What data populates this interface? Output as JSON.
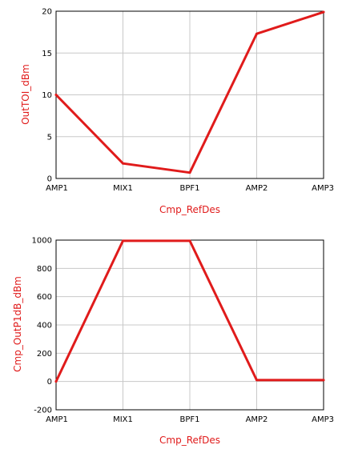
{
  "chart_data": [
    {
      "type": "line",
      "xlabel": "Cmp_RefDes",
      "ylabel": "OutTOI_dBm",
      "categories": [
        "AMP1",
        "MIX1",
        "BPF1",
        "AMP2",
        "AMP3"
      ],
      "values": [
        10,
        1.8,
        0.7,
        17.3,
        19.9
      ],
      "ylim": [
        0,
        20
      ],
      "yticks": [
        "0",
        "5",
        "10",
        "15",
        "20"
      ],
      "grid": true,
      "color": "#e01b1b"
    },
    {
      "type": "line",
      "xlabel": "Cmp_RefDes",
      "ylabel": "Cmp_OutP1dB_dBm",
      "categories": [
        "AMP1",
        "MIX1",
        "BPF1",
        "AMP2",
        "AMP3"
      ],
      "values": [
        0,
        995,
        995,
        10,
        10
      ],
      "ylim": [
        -200,
        1000
      ],
      "yticks": [
        "-200",
        "0",
        "200",
        "400",
        "600",
        "800",
        "1000"
      ],
      "grid": true,
      "color": "#e01b1b"
    }
  ]
}
